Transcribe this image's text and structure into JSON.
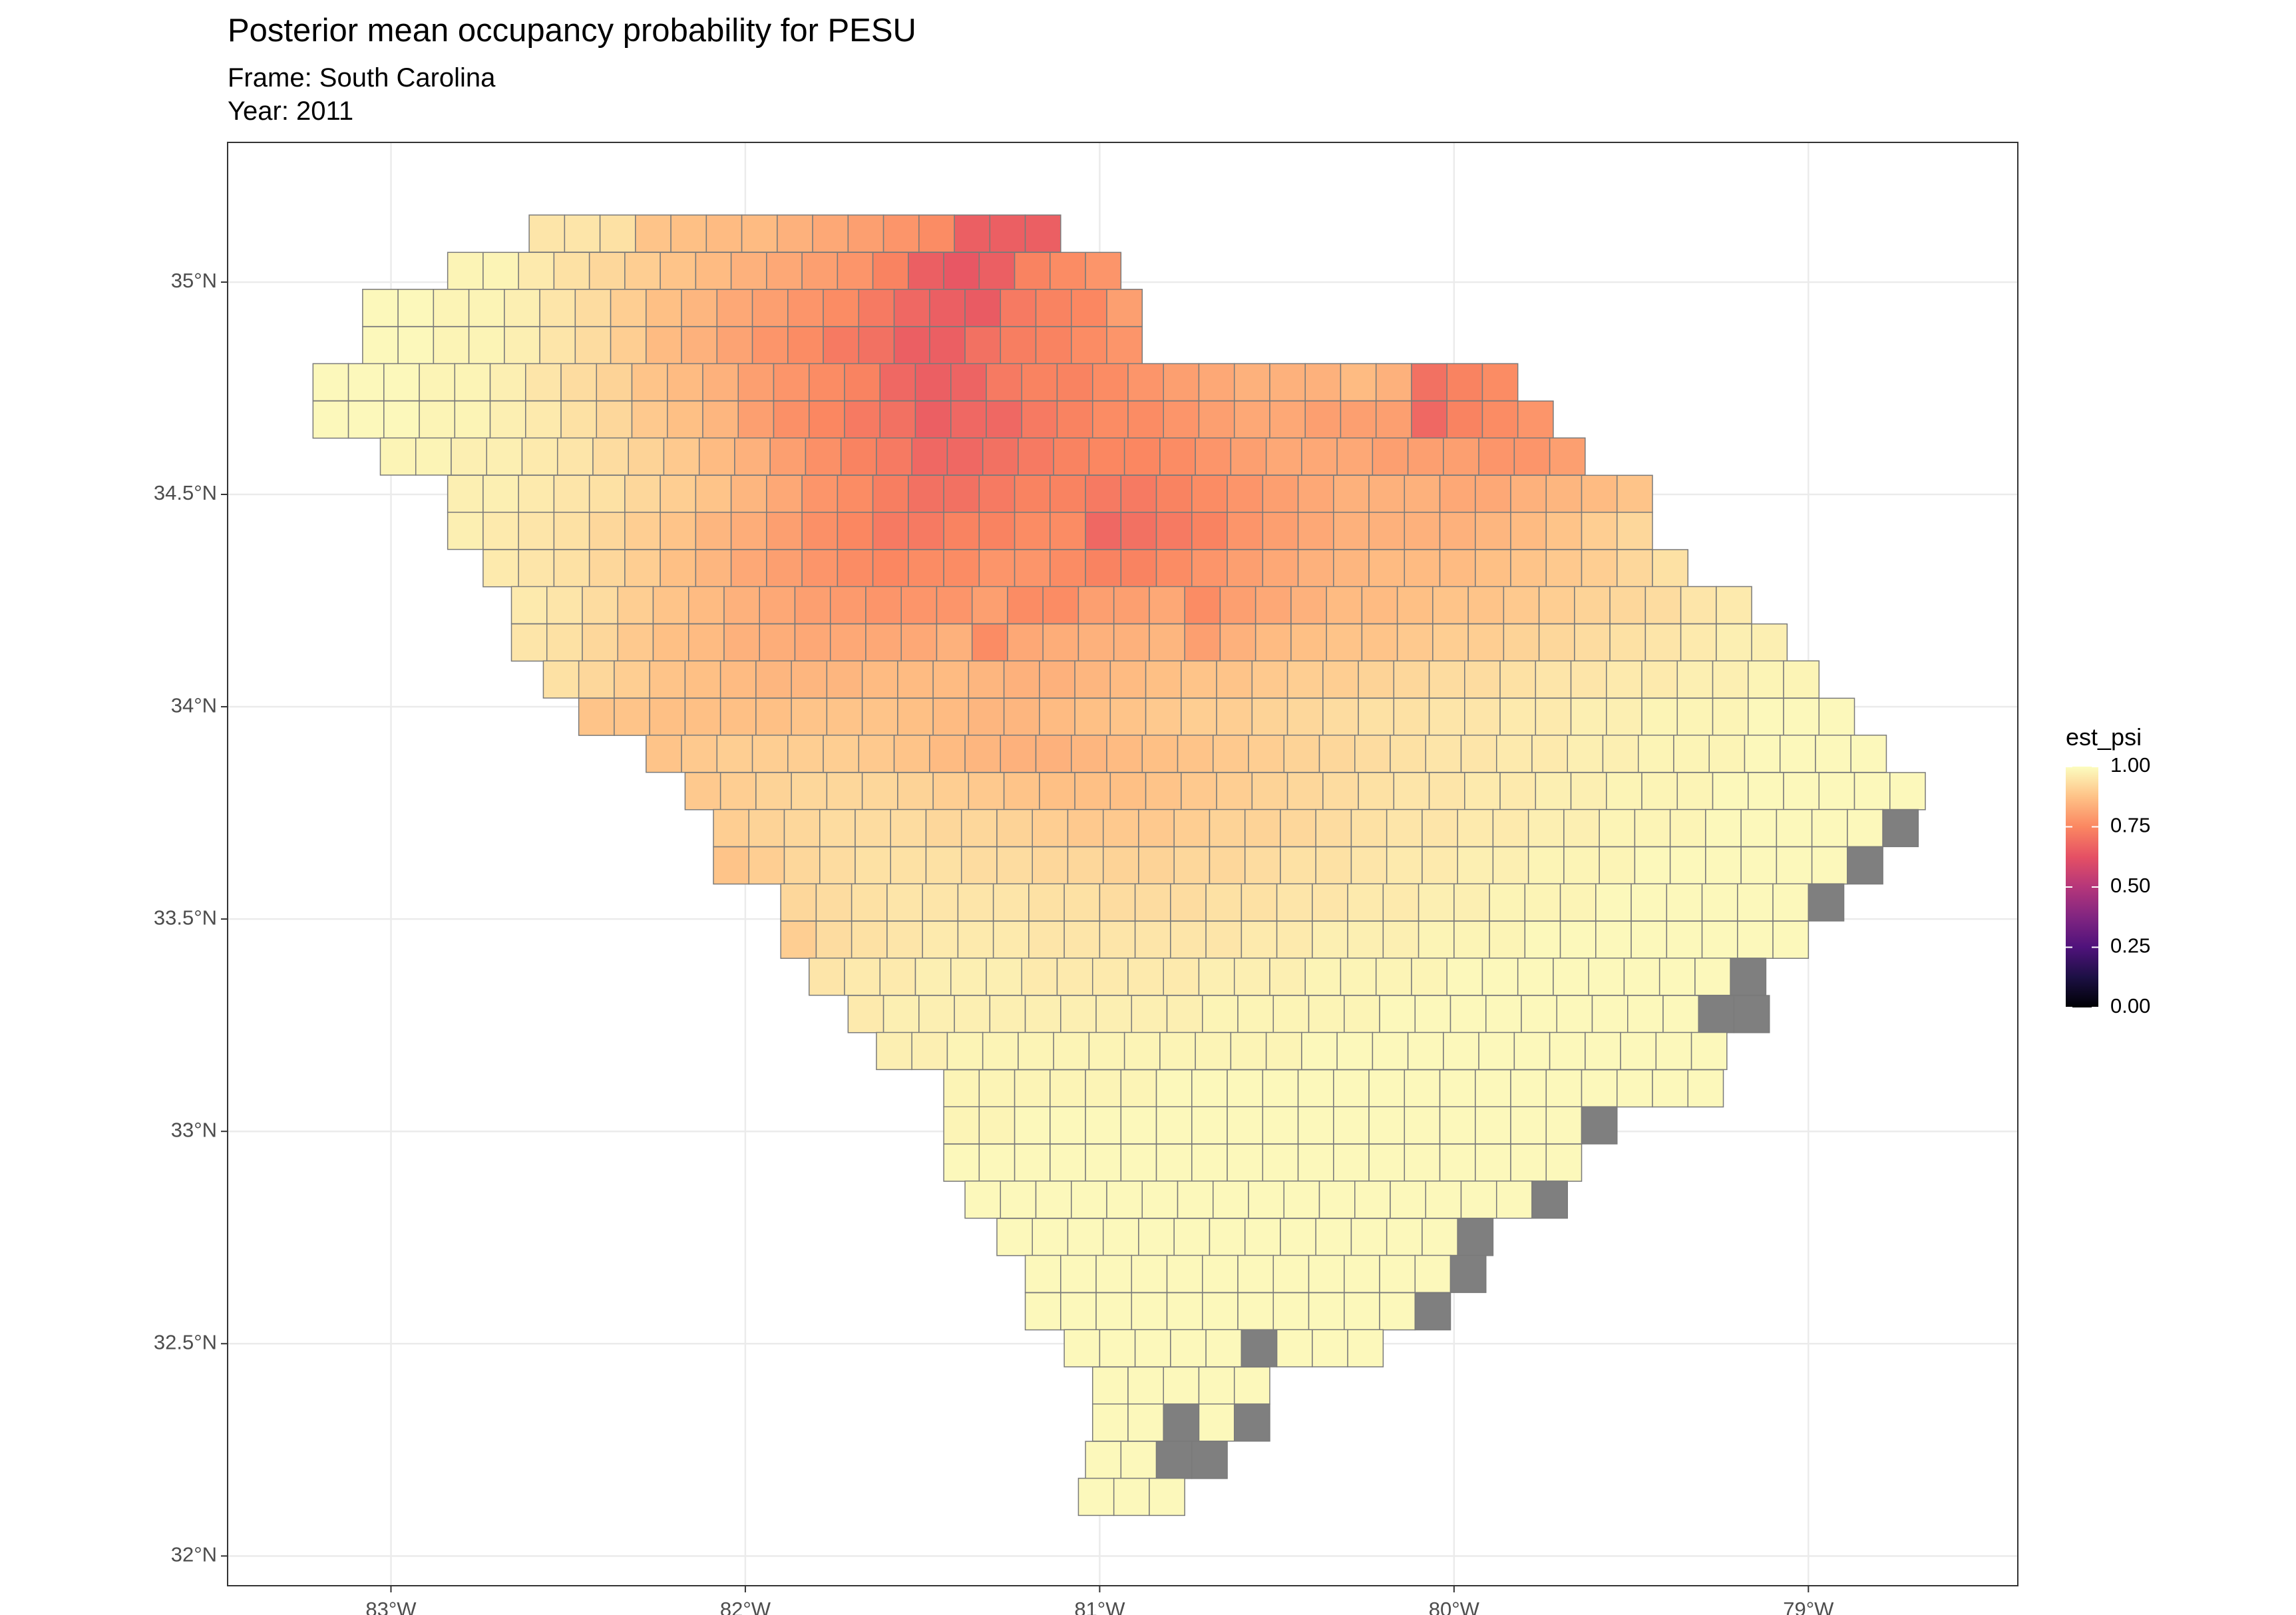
{
  "chart_data": {
    "type": "tile-map",
    "title": "Posterior mean occupancy probability for PESU",
    "subtitle": [
      "Frame: South Carolina",
      "Year: 2011"
    ],
    "xlim": [
      -83.461,
      -78.409
    ],
    "ylim": [
      31.93,
      35.329
    ],
    "xticks": [
      {
        "value": -83,
        "label": "83°W"
      },
      {
        "value": -82,
        "label": "82°W"
      },
      {
        "value": -81,
        "label": "81°W"
      },
      {
        "value": -80,
        "label": "80°W"
      },
      {
        "value": -79,
        "label": "79°W"
      }
    ],
    "yticks": [
      {
        "value": 32,
        "label": "32°N"
      },
      {
        "value": 32.5,
        "label": "32.5°N"
      },
      {
        "value": 33,
        "label": "33°N"
      },
      {
        "value": 33.5,
        "label": "33.5°N"
      },
      {
        "value": 34,
        "label": "34°N"
      },
      {
        "value": 34.5,
        "label": "34.5°N"
      },
      {
        "value": 35,
        "label": "35°N"
      }
    ],
    "grid": true,
    "cell_size": [
      0.1,
      0.0875
    ],
    "legend": {
      "title": "est_psi",
      "clim": [
        0,
        1
      ],
      "ticks": [
        {
          "value": 0,
          "label": "0.00"
        },
        {
          "value": 0.25,
          "label": "0.25"
        },
        {
          "value": 0.5,
          "label": "0.50"
        },
        {
          "value": 0.75,
          "label": "0.75"
        },
        {
          "value": 1,
          "label": "1.00"
        }
      ],
      "colors": [
        "#000004",
        "#1c1044",
        "#4f127b",
        "#812581",
        "#b5367a",
        "#e55064",
        "#fb8761",
        "#fec287",
        "#fcfdbf"
      ],
      "na_color": "#7f7f7f"
    },
    "rows": [
      {
        "lat": 35.158,
        "lon": -82.61,
        "values": [
          0.95,
          0.95,
          0.94,
          0.88,
          0.87,
          0.86,
          0.86,
          0.84,
          0.82,
          0.8,
          0.78,
          0.76,
          0.66,
          0.66,
          0.66
        ]
      },
      {
        "lat": 35.07,
        "lon": -82.84,
        "values": [
          0.98,
          0.98,
          0.96,
          0.94,
          0.92,
          0.9,
          0.88,
          0.86,
          0.84,
          0.82,
          0.8,
          0.78,
          0.74,
          0.66,
          0.64,
          0.66,
          0.74,
          0.76,
          0.78
        ]
      },
      {
        "lat": 34.983,
        "lon": -83.08,
        "values": [
          0.99,
          0.99,
          0.98,
          0.98,
          0.97,
          0.95,
          0.93,
          0.9,
          0.87,
          0.85,
          0.82,
          0.8,
          0.78,
          0.76,
          0.72,
          0.68,
          0.66,
          0.65,
          0.72,
          0.74,
          0.75,
          0.8
        ]
      },
      {
        "lat": 34.895,
        "lon": -83.08,
        "values": [
          0.99,
          0.99,
          0.98,
          0.98,
          0.97,
          0.95,
          0.93,
          0.9,
          0.86,
          0.84,
          0.81,
          0.78,
          0.76,
          0.72,
          0.7,
          0.66,
          0.66,
          0.7,
          0.73,
          0.74,
          0.76,
          0.78
        ]
      },
      {
        "lat": 34.808,
        "lon": -83.22,
        "values": [
          0.99,
          0.99,
          0.99,
          0.98,
          0.98,
          0.97,
          0.95,
          0.93,
          0.91,
          0.88,
          0.86,
          0.84,
          0.8,
          0.78,
          0.76,
          0.74,
          0.68,
          0.66,
          0.67,
          0.72,
          0.74,
          0.74,
          0.76,
          0.78,
          0.8,
          0.82,
          0.84,
          0.84,
          0.84,
          0.86,
          0.84,
          0.7,
          0.74,
          0.76
        ]
      },
      {
        "lat": 34.72,
        "lon": -83.22,
        "values": [
          0.99,
          0.99,
          0.99,
          0.98,
          0.98,
          0.97,
          0.96,
          0.94,
          0.92,
          0.89,
          0.87,
          0.85,
          0.8,
          0.77,
          0.75,
          0.72,
          0.7,
          0.66,
          0.68,
          0.68,
          0.72,
          0.74,
          0.76,
          0.76,
          0.78,
          0.8,
          0.82,
          0.82,
          0.8,
          0.8,
          0.8,
          0.68,
          0.74,
          0.76,
          0.78
        ]
      },
      {
        "lat": 34.633,
        "lon": -83.03,
        "values": [
          0.98,
          0.98,
          0.97,
          0.97,
          0.96,
          0.95,
          0.93,
          0.91,
          0.89,
          0.86,
          0.84,
          0.8,
          0.77,
          0.74,
          0.72,
          0.68,
          0.68,
          0.7,
          0.72,
          0.74,
          0.75,
          0.75,
          0.76,
          0.78,
          0.8,
          0.82,
          0.82,
          0.82,
          0.8,
          0.8,
          0.8,
          0.78,
          0.78,
          0.8
        ]
      },
      {
        "lat": 34.545,
        "lon": -82.84,
        "values": [
          0.97,
          0.97,
          0.96,
          0.95,
          0.94,
          0.92,
          0.9,
          0.88,
          0.85,
          0.82,
          0.78,
          0.76,
          0.73,
          0.7,
          0.7,
          0.72,
          0.74,
          0.74,
          0.72,
          0.72,
          0.74,
          0.76,
          0.78,
          0.8,
          0.82,
          0.84,
          0.84,
          0.84,
          0.82,
          0.82,
          0.84,
          0.85,
          0.86,
          0.88
        ]
      },
      {
        "lat": 34.458,
        "lon": -82.84,
        "values": [
          0.97,
          0.96,
          0.95,
          0.94,
          0.92,
          0.9,
          0.88,
          0.85,
          0.83,
          0.8,
          0.77,
          0.75,
          0.72,
          0.72,
          0.74,
          0.74,
          0.76,
          0.76,
          0.68,
          0.7,
          0.72,
          0.74,
          0.78,
          0.8,
          0.82,
          0.84,
          0.84,
          0.84,
          0.84,
          0.85,
          0.86,
          0.88,
          0.9,
          0.92
        ]
      },
      {
        "lat": 34.37,
        "lon": -82.74,
        "values": [
          0.96,
          0.95,
          0.94,
          0.92,
          0.9,
          0.87,
          0.85,
          0.82,
          0.8,
          0.78,
          0.76,
          0.75,
          0.76,
          0.76,
          0.78,
          0.78,
          0.76,
          0.74,
          0.74,
          0.76,
          0.78,
          0.8,
          0.82,
          0.84,
          0.85,
          0.86,
          0.86,
          0.86,
          0.87,
          0.88,
          0.89,
          0.9,
          0.92,
          0.94
        ]
      },
      {
        "lat": 34.283,
        "lon": -82.66,
        "values": [
          0.96,
          0.95,
          0.93,
          0.9,
          0.88,
          0.86,
          0.84,
          0.82,
          0.8,
          0.79,
          0.78,
          0.78,
          0.78,
          0.8,
          0.76,
          0.76,
          0.8,
          0.8,
          0.82,
          0.76,
          0.8,
          0.82,
          0.84,
          0.86,
          0.86,
          0.87,
          0.88,
          0.88,
          0.89,
          0.9,
          0.91,
          0.92,
          0.93,
          0.95,
          0.96
        ]
      },
      {
        "lat": 34.195,
        "lon": -82.66,
        "values": [
          0.95,
          0.94,
          0.92,
          0.89,
          0.87,
          0.86,
          0.84,
          0.83,
          0.82,
          0.82,
          0.82,
          0.82,
          0.84,
          0.76,
          0.82,
          0.83,
          0.84,
          0.84,
          0.85,
          0.8,
          0.84,
          0.86,
          0.87,
          0.88,
          0.88,
          0.89,
          0.9,
          0.9,
          0.91,
          0.92,
          0.93,
          0.94,
          0.95,
          0.96,
          0.97,
          0.97
        ]
      },
      {
        "lat": 34.108,
        "lon": -82.57,
        "values": [
          0.94,
          0.92,
          0.9,
          0.88,
          0.87,
          0.86,
          0.85,
          0.85,
          0.85,
          0.86,
          0.86,
          0.86,
          0.85,
          0.84,
          0.84,
          0.85,
          0.86,
          0.87,
          0.88,
          0.88,
          0.89,
          0.9,
          0.9,
          0.91,
          0.92,
          0.93,
          0.93,
          0.94,
          0.95,
          0.95,
          0.96,
          0.96,
          0.97,
          0.97,
          0.98,
          0.98
        ]
      },
      {
        "lat": 34.02,
        "lon": -82.47,
        "values": [
          0.88,
          0.88,
          0.87,
          0.87,
          0.87,
          0.87,
          0.88,
          0.88,
          0.88,
          0.87,
          0.86,
          0.85,
          0.85,
          0.86,
          0.87,
          0.88,
          0.89,
          0.9,
          0.9,
          0.91,
          0.92,
          0.93,
          0.94,
          0.94,
          0.95,
          0.95,
          0.96,
          0.96,
          0.97,
          0.97,
          0.98,
          0.98,
          0.98,
          0.99,
          0.99,
          0.99
        ]
      },
      {
        "lat": 33.933,
        "lon": -82.28,
        "values": [
          0.88,
          0.89,
          0.9,
          0.9,
          0.9,
          0.9,
          0.89,
          0.88,
          0.86,
          0.85,
          0.84,
          0.84,
          0.85,
          0.86,
          0.87,
          0.88,
          0.89,
          0.9,
          0.91,
          0.92,
          0.93,
          0.94,
          0.95,
          0.95,
          0.96,
          0.96,
          0.97,
          0.97,
          0.98,
          0.98,
          0.98,
          0.99,
          0.99,
          0.99,
          0.99
        ]
      },
      {
        "lat": 33.845,
        "lon": -82.17,
        "values": [
          0.89,
          0.9,
          0.91,
          0.92,
          0.92,
          0.92,
          0.91,
          0.9,
          0.89,
          0.88,
          0.87,
          0.87,
          0.87,
          0.88,
          0.89,
          0.9,
          0.91,
          0.92,
          0.93,
          0.94,
          0.95,
          0.95,
          0.96,
          0.96,
          0.97,
          0.97,
          0.98,
          0.98,
          0.98,
          0.99,
          0.99,
          0.99,
          0.99,
          0.99,
          0.99
        ]
      },
      {
        "lat": 33.758,
        "lon": -82.09,
        "values": [
          0.9,
          0.91,
          0.92,
          0.93,
          0.93,
          0.93,
          0.92,
          0.92,
          0.91,
          0.9,
          0.89,
          0.89,
          0.89,
          0.9,
          0.91,
          0.91,
          0.92,
          0.93,
          0.94,
          0.95,
          0.95,
          0.96,
          0.96,
          0.97,
          0.97,
          0.98,
          0.98,
          0.98,
          0.99,
          0.99,
          0.99,
          0.99,
          0.99,
          null
        ]
      },
      {
        "lat": 33.67,
        "lon": -82.09,
        "values": [
          0.88,
          0.9,
          0.92,
          0.93,
          0.94,
          0.94,
          0.94,
          0.93,
          0.93,
          0.92,
          0.92,
          0.91,
          0.91,
          0.92,
          0.92,
          0.93,
          0.94,
          0.94,
          0.95,
          0.96,
          0.96,
          0.97,
          0.97,
          0.98,
          0.98,
          0.98,
          0.99,
          0.99,
          0.99,
          0.99,
          0.99,
          0.99,
          null
        ]
      },
      {
        "lat": 33.583,
        "lon": -81.9,
        "values": [
          0.92,
          0.93,
          0.94,
          0.95,
          0.95,
          0.95,
          0.95,
          0.94,
          0.94,
          0.93,
          0.93,
          0.93,
          0.94,
          0.94,
          0.95,
          0.95,
          0.96,
          0.96,
          0.97,
          0.97,
          0.98,
          0.98,
          0.98,
          0.99,
          0.99,
          0.99,
          0.99,
          0.99,
          0.99,
          null
        ]
      },
      {
        "lat": 33.495,
        "lon": -81.9,
        "values": [
          0.9,
          0.93,
          0.94,
          0.95,
          0.96,
          0.96,
          0.96,
          0.95,
          0.95,
          0.95,
          0.95,
          0.95,
          0.95,
          0.96,
          0.96,
          0.97,
          0.97,
          0.97,
          0.98,
          0.98,
          0.98,
          0.99,
          0.99,
          0.99,
          0.99,
          0.99,
          0.99,
          0.99,
          0.99
        ]
      },
      {
        "lat": 33.408,
        "lon": -81.82,
        "values": [
          0.95,
          0.96,
          0.96,
          0.97,
          0.97,
          0.97,
          0.96,
          0.96,
          0.96,
          0.96,
          0.96,
          0.97,
          0.97,
          0.97,
          0.98,
          0.98,
          0.98,
          0.98,
          0.99,
          0.99,
          0.99,
          0.99,
          0.99,
          0.99,
          0.99,
          0.99,
          null
        ]
      },
      {
        "lat": 33.32,
        "lon": -81.71,
        "values": [
          0.96,
          0.97,
          0.97,
          0.97,
          0.97,
          0.97,
          0.97,
          0.97,
          0.97,
          0.97,
          0.98,
          0.98,
          0.98,
          0.98,
          0.98,
          0.99,
          0.99,
          0.99,
          0.99,
          0.99,
          0.99,
          0.99,
          0.99,
          0.99,
          null,
          null
        ]
      },
      {
        "lat": 33.233,
        "lon": -81.63,
        "values": [
          0.97,
          0.97,
          0.98,
          0.98,
          0.98,
          0.98,
          0.98,
          0.98,
          0.98,
          0.98,
          0.98,
          0.98,
          0.99,
          0.99,
          0.99,
          0.99,
          0.99,
          0.99,
          0.99,
          0.99,
          0.99,
          0.99,
          0.99,
          0.99
        ]
      },
      {
        "lat": 33.145,
        "lon": -81.44,
        "values": [
          0.98,
          0.98,
          0.98,
          0.98,
          0.98,
          0.98,
          0.99,
          0.99,
          0.99,
          0.99,
          0.99,
          0.99,
          0.99,
          0.99,
          0.99,
          0.99,
          0.99,
          0.99,
          0.99,
          0.99,
          0.99,
          0.99
        ]
      },
      {
        "lat": 33.058,
        "lon": -81.44,
        "values": [
          0.98,
          0.98,
          0.99,
          0.99,
          0.99,
          0.99,
          0.99,
          0.99,
          0.99,
          0.99,
          0.99,
          0.99,
          0.99,
          0.99,
          0.99,
          0.99,
          0.99,
          0.99,
          null
        ]
      },
      {
        "lat": 32.97,
        "lon": -81.44,
        "values": [
          0.99,
          0.99,
          0.99,
          0.99,
          0.99,
          0.99,
          0.99,
          0.99,
          0.99,
          0.99,
          0.99,
          0.99,
          0.99,
          0.99,
          0.99,
          0.99,
          0.99,
          0.99
        ]
      },
      {
        "lat": 32.883,
        "lon": -81.38,
        "values": [
          0.99,
          0.99,
          0.99,
          0.99,
          0.99,
          0.99,
          0.99,
          0.99,
          0.99,
          0.99,
          0.99,
          0.99,
          0.99,
          0.99,
          0.99,
          0.99,
          null
        ]
      },
      {
        "lat": 32.795,
        "lon": -81.29,
        "values": [
          0.99,
          0.99,
          0.99,
          0.99,
          0.99,
          0.99,
          0.99,
          0.99,
          0.99,
          0.99,
          0.99,
          0.99,
          0.99,
          null
        ]
      },
      {
        "lat": 32.708,
        "lon": -81.21,
        "values": [
          0.99,
          0.99,
          0.99,
          0.99,
          0.99,
          0.99,
          0.99,
          0.99,
          0.99,
          0.99,
          0.99,
          0.99,
          null
        ]
      },
      {
        "lat": 32.62,
        "lon": -81.21,
        "values": [
          0.99,
          0.99,
          0.99,
          0.99,
          0.99,
          0.99,
          0.99,
          0.99,
          0.99,
          0.99,
          0.99,
          null
        ]
      },
      {
        "lat": 32.533,
        "lon": -81.1,
        "values": [
          0.99,
          0.99,
          0.99,
          0.99,
          0.99,
          null,
          0.99,
          0.99,
          0.99
        ]
      },
      {
        "lat": 32.445,
        "lon": -81.02,
        "values": [
          0.99,
          0.99,
          0.99,
          0.99,
          0.99
        ]
      },
      {
        "lat": 32.358,
        "lon": -81.02,
        "values": [
          0.99,
          0.99,
          null,
          0.99,
          null
        ]
      },
      {
        "lat": 32.27,
        "lon": -81.04,
        "values": [
          0.99,
          0.99,
          null,
          null
        ]
      },
      {
        "lat": 32.183,
        "lon": -81.06,
        "values": [
          0.99,
          0.99,
          0.99
        ]
      }
    ]
  }
}
